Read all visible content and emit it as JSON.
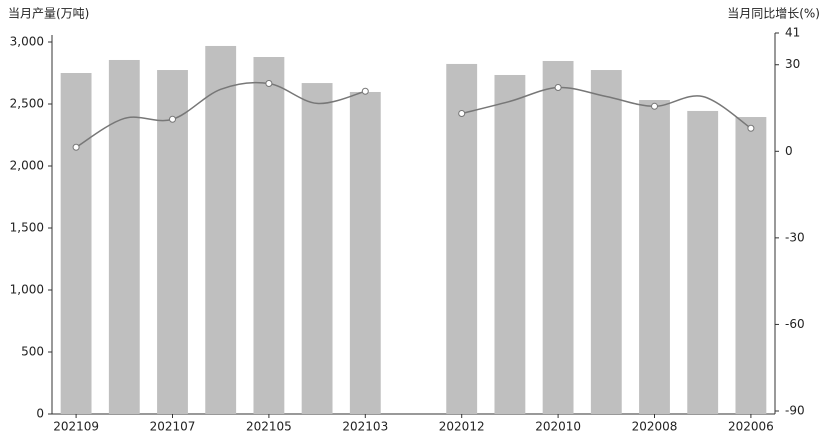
{
  "chart_data": {
    "type": "bar-line",
    "y_title": "当月产量(万吨)",
    "y2_title": "当月同比增长(%)",
    "categories": [
      "202109",
      null,
      "202107",
      null,
      "202105",
      null,
      "202103",
      null,
      "202012",
      null,
      "202010",
      null,
      "202008",
      null,
      "202006"
    ],
    "series": [
      {
        "name": "当月产量",
        "type": "bar",
        "color": "#bfbfbf",
        "values": [
          2750,
          2855,
          2774,
          2968,
          2879,
          2669,
          2597,
          null,
          2823,
          2734,
          2847,
          2774,
          2532,
          2444,
          2395
        ]
      },
      {
        "name": "当月同比增长",
        "type": "line",
        "axis": "y2",
        "color": "#777777",
        "values": [
          1.4,
          11.4,
          11.1,
          21.5,
          23.5,
          16.6,
          20.8,
          null,
          13.1,
          17.3,
          22.1,
          19.0,
          15.6,
          19.0,
          8.0
        ]
      }
    ],
    "ylim": [
      0,
      3000
    ],
    "yticks": [
      0,
      500,
      {
        "value": 1000,
        "label": "1,000"
      },
      {
        "value": 1500,
        "label": "1,500"
      },
      {
        "value": 2000,
        "label": "2,000"
      },
      {
        "value": 2500,
        "label": "2,500"
      },
      {
        "value": 3000,
        "label": "3,000"
      }
    ],
    "y2lim": [
      -90,
      41
    ],
    "y2ticks": [
      -90,
      -60,
      -30,
      0,
      30,
      41
    ],
    "grid": false
  }
}
